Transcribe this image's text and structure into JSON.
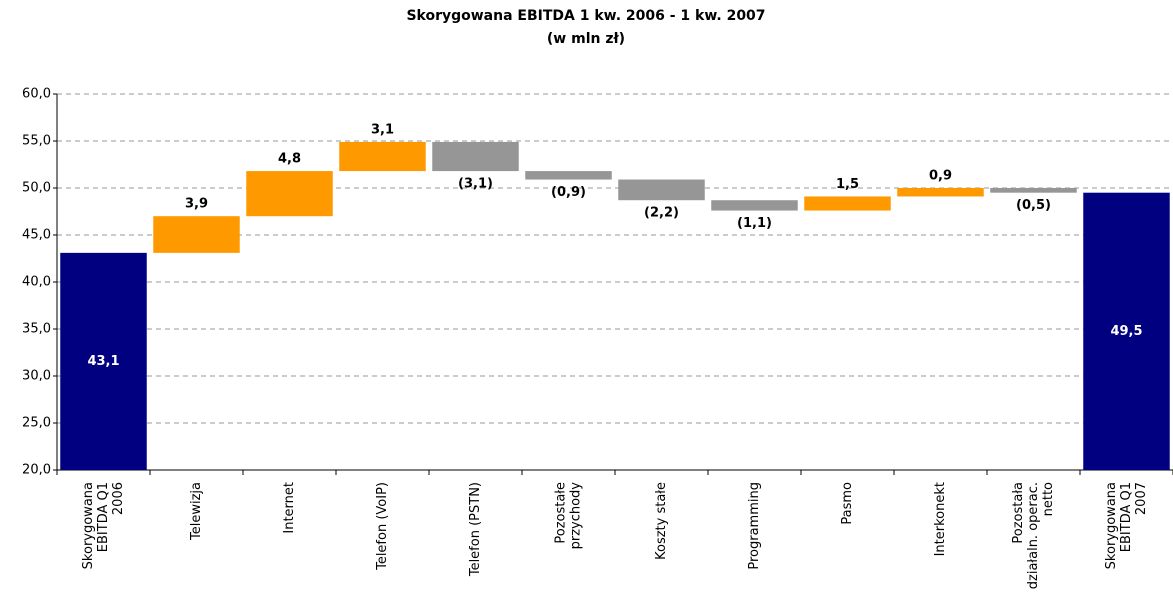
{
  "chart_data": {
    "type": "waterfall",
    "title": [
      "Skorygowana EBITDA 1 kw. 2006 - 1 kw. 2007",
      "(w mln zł)"
    ],
    "categories": [
      [
        "Skorygowana",
        "EBITDA Q1",
        "2006"
      ],
      [
        "Telewizja"
      ],
      [
        "Internet"
      ],
      [
        "Telefon (VoIP)"
      ],
      [
        "Telefon (PSTN)"
      ],
      [
        "Pozostałe",
        "przychody"
      ],
      [
        "Koszty stałe"
      ],
      [
        "Programming"
      ],
      [
        "Pasmo"
      ],
      [
        "Interkonekt"
      ],
      [
        "Pozostała",
        "działaln. operac.",
        "netto"
      ],
      [
        "Skorygowana",
        "EBITDA Q1",
        "2007"
      ]
    ],
    "values": [
      43.1,
      3.9,
      4.8,
      3.1,
      -3.1,
      -0.9,
      -2.2,
      -1.1,
      1.5,
      0.9,
      -0.5,
      49.5
    ],
    "value_labels": [
      "43,1",
      "3,9",
      "4,8",
      "3,1",
      "(3,1)",
      "(0,9)",
      "(2,2)",
      "(1,1)",
      "1,5",
      "0,9",
      "(0,5)",
      "49,5"
    ],
    "measures": [
      "absolute",
      "relative",
      "relative",
      "relative",
      "relative",
      "relative",
      "relative",
      "relative",
      "relative",
      "relative",
      "relative",
      "absolute"
    ],
    "colors": [
      "#000080",
      "#FF9900",
      "#FF9900",
      "#FF9900",
      "#969696",
      "#969696",
      "#969696",
      "#969696",
      "#FF9900",
      "#FF9900",
      "#969696",
      "#000080"
    ],
    "ylim": [
      20,
      60
    ],
    "yticks": [
      {
        "value": 20,
        "label": "20,0"
      },
      {
        "value": 25,
        "label": "25,0"
      },
      {
        "value": 30,
        "label": "30,0"
      },
      {
        "value": 35,
        "label": "35,0"
      },
      {
        "value": 40,
        "label": "40,0"
      },
      {
        "value": 45,
        "label": "45,0"
      },
      {
        "value": 50,
        "label": "50,0"
      },
      {
        "value": 55,
        "label": "55,0"
      },
      {
        "value": 60,
        "label": "60,0"
      }
    ],
    "grid": true
  }
}
